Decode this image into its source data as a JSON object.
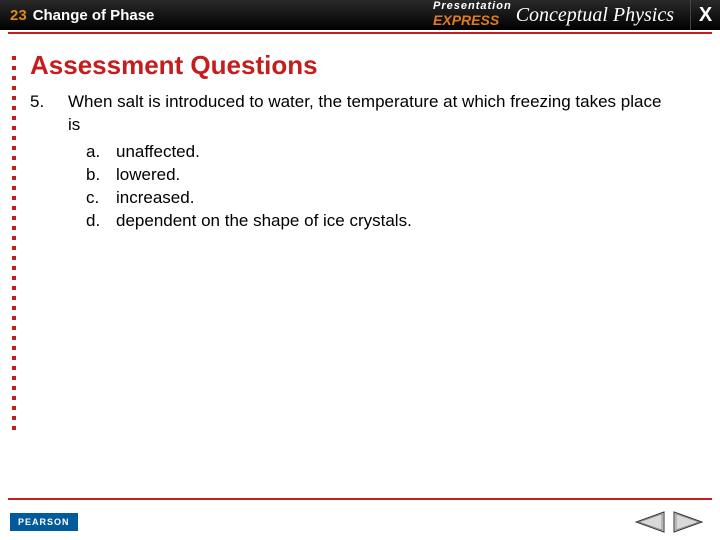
{
  "colors": {
    "accent": "#c51d1d",
    "topbar_bg": "#000000",
    "chapter_num": "#d98a1a",
    "brand_express": "#e07b1f",
    "pearson_bg": "#005a9c",
    "arrow_fill": "#d9d9d9",
    "arrow_stroke": "#333333"
  },
  "topbar": {
    "chapter_number": "23",
    "chapter_title": "Change of Phase",
    "brand_presentation": "Presentation",
    "brand_express": "EXPRESS",
    "brand_book": "Conceptual Physics",
    "close_glyph": "X"
  },
  "section_title": "Assessment Questions",
  "question": {
    "number": "5.",
    "stem": "When salt is introduced to water, the temperature at which freezing takes place is",
    "choices": [
      {
        "letter": "a.",
        "text": "unaffected."
      },
      {
        "letter": "b.",
        "text": "lowered."
      },
      {
        "letter": "c.",
        "text": "increased."
      },
      {
        "letter": "d.",
        "text": "dependent on the shape of ice crystals."
      }
    ]
  },
  "footer": {
    "publisher": "PEARSON"
  },
  "dot_count": 38
}
